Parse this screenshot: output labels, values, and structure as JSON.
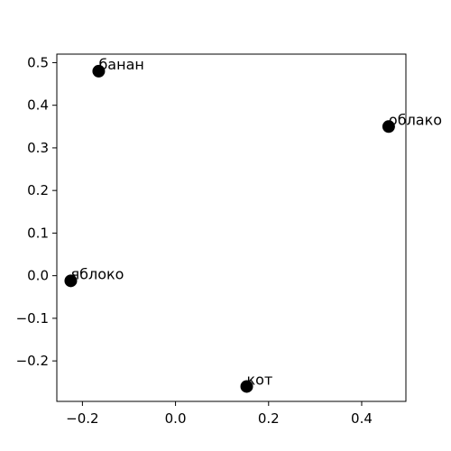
{
  "chart_data": {
    "type": "scatter",
    "title": "",
    "xlabel": "",
    "ylabel": "",
    "xlim": [
      -0.255,
      0.495
    ],
    "ylim": [
      -0.295,
      0.52
    ],
    "grid": false,
    "marker_color": "#000000",
    "points": [
      {
        "label": "банан",
        "x": -0.165,
        "y": 0.48
      },
      {
        "label": "облако",
        "x": 0.458,
        "y": 0.35
      },
      {
        "label": "яблоко",
        "x": -0.225,
        "y": -0.012
      },
      {
        "label": "кот",
        "x": 0.153,
        "y": -0.26
      }
    ],
    "x_ticks": [
      {
        "value": -0.2,
        "label": "−0.2"
      },
      {
        "value": 0.0,
        "label": "0.0"
      },
      {
        "value": 0.2,
        "label": "0.2"
      },
      {
        "value": 0.4,
        "label": "0.4"
      }
    ],
    "y_ticks": [
      {
        "value": -0.2,
        "label": "−0.2"
      },
      {
        "value": -0.1,
        "label": "−0.1"
      },
      {
        "value": 0.0,
        "label": "0.0"
      },
      {
        "value": 0.1,
        "label": "0.1"
      },
      {
        "value": 0.2,
        "label": "0.2"
      },
      {
        "value": 0.3,
        "label": "0.3"
      },
      {
        "value": 0.4,
        "label": "0.4"
      },
      {
        "value": 0.5,
        "label": "0.5"
      }
    ]
  }
}
